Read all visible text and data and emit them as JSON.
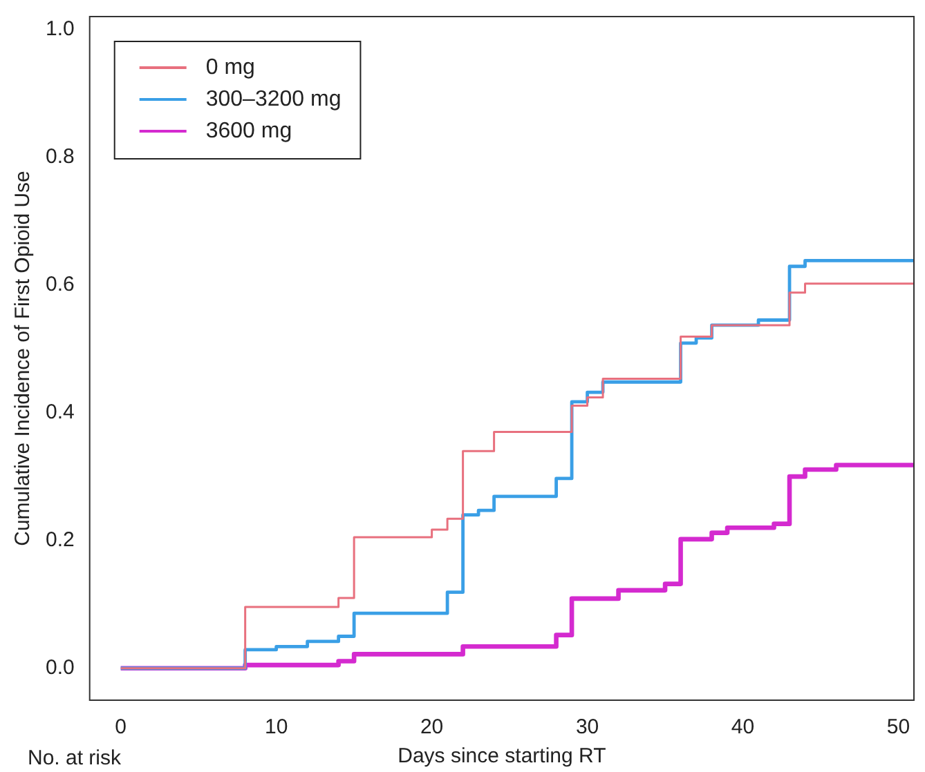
{
  "chart_data": {
    "type": "step",
    "xlabel": "Days since starting RT",
    "ylabel": "Cumulative Incidence of First Opioid Use",
    "xlim": [
      -2,
      51
    ],
    "xticks": [
      0,
      10,
      20,
      30,
      40,
      50
    ],
    "ylim": [
      -0.05,
      1.02
    ],
    "yticks": [
      {
        "value": 0,
        "label": "0.0"
      },
      {
        "value": 0.2,
        "label": "0.2"
      },
      {
        "value": 0.4,
        "label": "0.4"
      },
      {
        "value": 0.6,
        "label": "0.6"
      },
      {
        "value": 0.8,
        "label": "0.8"
      },
      {
        "value": 1,
        "label": "1.0"
      }
    ],
    "grid": false,
    "legend": "top left",
    "annotations": [
      "No. at risk"
    ],
    "series": [
      {
        "name": "0 mg",
        "color": "#e8707e",
        "x": [
          0,
          8,
          14,
          15,
          20,
          21,
          22,
          24,
          29,
          30,
          31,
          36,
          38,
          43,
          44,
          51
        ],
        "values": [
          0,
          0.096,
          0.11,
          0.205,
          0.217,
          0.234,
          0.34,
          0.37,
          0.411,
          0.424,
          0.453,
          0.519,
          0.537,
          0.588,
          0.602,
          0.602
        ]
      },
      {
        "name": "300–3200 mg",
        "color": "#3a9fe6",
        "x": [
          0,
          8,
          10,
          12,
          14,
          15,
          21,
          22,
          23,
          24,
          28,
          29,
          30,
          31,
          36,
          37,
          38,
          41,
          43,
          44,
          51
        ],
        "values": [
          0,
          0.029,
          0.034,
          0.042,
          0.05,
          0.086,
          0.119,
          0.24,
          0.247,
          0.269,
          0.297,
          0.417,
          0.432,
          0.448,
          0.509,
          0.517,
          0.537,
          0.545,
          0.629,
          0.638,
          0.638
        ]
      },
      {
        "name": "3600 mg",
        "color": "#d42acf",
        "x": [
          0,
          8,
          14,
          15,
          22,
          28,
          29,
          32,
          35,
          36,
          38,
          39,
          42,
          43,
          44,
          46,
          51
        ],
        "values": [
          0,
          0.005,
          0.011,
          0.022,
          0.034,
          0.052,
          0.109,
          0.122,
          0.132,
          0.202,
          0.212,
          0.22,
          0.226,
          0.3,
          0.311,
          0.318,
          0.318
        ]
      }
    ]
  }
}
